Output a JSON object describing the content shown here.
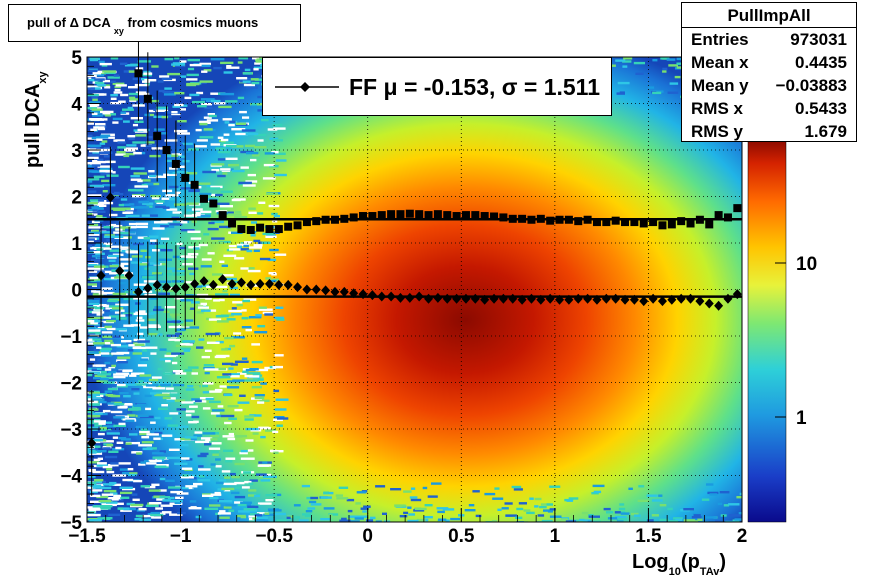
{
  "chart_data": {
    "type": "heatmap",
    "title": "pull of Δ DCA",
    "title_sub": "xy",
    "title_suffix": "from cosmics muons",
    "xlabel": "Log",
    "xlabel_sub1": "10",
    "xlabel_mid": "(p",
    "xlabel_sub2": "TAv",
    "xlabel_end": ")",
    "ylabel": "pull DCA",
    "ylabel_sub": "xy",
    "xlim": [
      -1.5,
      2
    ],
    "ylim": [
      -5,
      5
    ],
    "x_ticks": [
      "−1.5",
      "−1",
      "−0.5",
      "0",
      "0.5",
      "1",
      "1.5",
      "2"
    ],
    "y_ticks": [
      "−5",
      "−4",
      "−3",
      "−2",
      "−1",
      "0",
      "1",
      "2",
      "3",
      "4",
      "5"
    ],
    "z_scale": "log",
    "z_ticks": [
      "1",
      "10"
    ],
    "grid": true,
    "legend_entry": "FF μ = -0.153, σ =   1.511",
    "stats": {
      "name": "PullImpAll",
      "rows": [
        {
          "label": "Entries",
          "value": "973031"
        },
        {
          "label": "Mean x",
          "value": "0.4435"
        },
        {
          "label": "Mean y",
          "value": "−0.03883"
        },
        {
          "label": "RMS x",
          "value": "0.5433"
        },
        {
          "label": "RMS y",
          "value": "1.679"
        }
      ]
    },
    "fit_lines": [
      {
        "name": "mu",
        "y": -0.153
      },
      {
        "name": "sigma",
        "y": 1.511
      }
    ],
    "series": [
      {
        "name": "sigma",
        "marker": "square",
        "x": [
          -1.475,
          -1.425,
          -1.375,
          -1.325,
          -1.275,
          -1.225,
          -1.175,
          -1.125,
          -1.075,
          -1.025,
          -0.975,
          -0.925,
          -0.875,
          -0.825,
          -0.775,
          -0.725,
          -0.675,
          -0.625,
          -0.575,
          -0.525,
          -0.475,
          -0.425,
          -0.375,
          -0.325,
          -0.275,
          -0.225,
          -0.175,
          -0.125,
          -0.075,
          -0.025,
          0.025,
          0.075,
          0.125,
          0.175,
          0.225,
          0.275,
          0.325,
          0.375,
          0.425,
          0.475,
          0.525,
          0.575,
          0.625,
          0.675,
          0.725,
          0.775,
          0.825,
          0.875,
          0.925,
          0.975,
          1.025,
          1.075,
          1.125,
          1.175,
          1.225,
          1.275,
          1.325,
          1.375,
          1.425,
          1.475,
          1.525,
          1.575,
          1.625,
          1.675,
          1.725,
          1.775,
          1.825,
          1.875,
          1.925,
          1.975
        ],
        "y": [
          null,
          null,
          null,
          null,
          null,
          4.65,
          4.1,
          3.3,
          3.0,
          2.7,
          2.4,
          2.25,
          1.95,
          1.85,
          1.6,
          1.42,
          1.3,
          1.28,
          1.33,
          1.3,
          1.3,
          1.35,
          1.38,
          1.45,
          1.47,
          1.5,
          1.5,
          1.52,
          1.55,
          1.58,
          1.58,
          1.6,
          1.62,
          1.62,
          1.63,
          1.62,
          1.6,
          1.62,
          1.6,
          1.58,
          1.6,
          1.6,
          1.58,
          1.57,
          1.55,
          1.52,
          1.52,
          1.5,
          1.52,
          1.48,
          1.5,
          1.5,
          1.47,
          1.5,
          1.45,
          1.45,
          1.48,
          1.45,
          1.45,
          1.42,
          1.45,
          1.38,
          1.4,
          1.47,
          1.42,
          1.5,
          1.4,
          1.6,
          1.55,
          1.75
        ]
      },
      {
        "name": "mu",
        "marker": "diamond",
        "x": [
          -1.475,
          -1.425,
          -1.375,
          -1.325,
          -1.275,
          -1.225,
          -1.175,
          -1.125,
          -1.075,
          -1.025,
          -0.975,
          -0.925,
          -0.875,
          -0.825,
          -0.775,
          -0.725,
          -0.675,
          -0.625,
          -0.575,
          -0.525,
          -0.475,
          -0.425,
          -0.375,
          -0.325,
          -0.275,
          -0.225,
          -0.175,
          -0.125,
          -0.075,
          -0.025,
          0.025,
          0.075,
          0.125,
          0.175,
          0.225,
          0.275,
          0.325,
          0.375,
          0.425,
          0.475,
          0.525,
          0.575,
          0.625,
          0.675,
          0.725,
          0.775,
          0.825,
          0.875,
          0.925,
          0.975,
          1.025,
          1.075,
          1.125,
          1.175,
          1.225,
          1.275,
          1.325,
          1.375,
          1.425,
          1.475,
          1.525,
          1.575,
          1.625,
          1.675,
          1.725,
          1.775,
          1.825,
          1.875,
          1.925,
          1.975
        ],
        "y": [
          -3.3,
          0.3,
          1.98,
          0.4,
          0.3,
          -0.05,
          0.03,
          0.1,
          0.05,
          0.02,
          0.05,
          0.12,
          0.18,
          0.1,
          0.22,
          0.12,
          0.15,
          0.1,
          0.12,
          0.12,
          0.1,
          0.1,
          0.05,
          0.0,
          0.0,
          -0.02,
          -0.05,
          -0.05,
          -0.08,
          -0.1,
          -0.12,
          -0.15,
          -0.15,
          -0.18,
          -0.18,
          -0.15,
          -0.2,
          -0.18,
          -0.2,
          -0.2,
          -0.2,
          -0.2,
          -0.22,
          -0.2,
          -0.2,
          -0.2,
          -0.22,
          -0.2,
          -0.22,
          -0.2,
          -0.22,
          -0.22,
          -0.2,
          -0.2,
          -0.22,
          -0.2,
          -0.2,
          -0.22,
          -0.22,
          -0.25,
          -0.2,
          -0.25,
          -0.22,
          -0.2,
          -0.2,
          -0.25,
          -0.3,
          -0.35,
          -0.2,
          -0.1
        ]
      }
    ]
  }
}
